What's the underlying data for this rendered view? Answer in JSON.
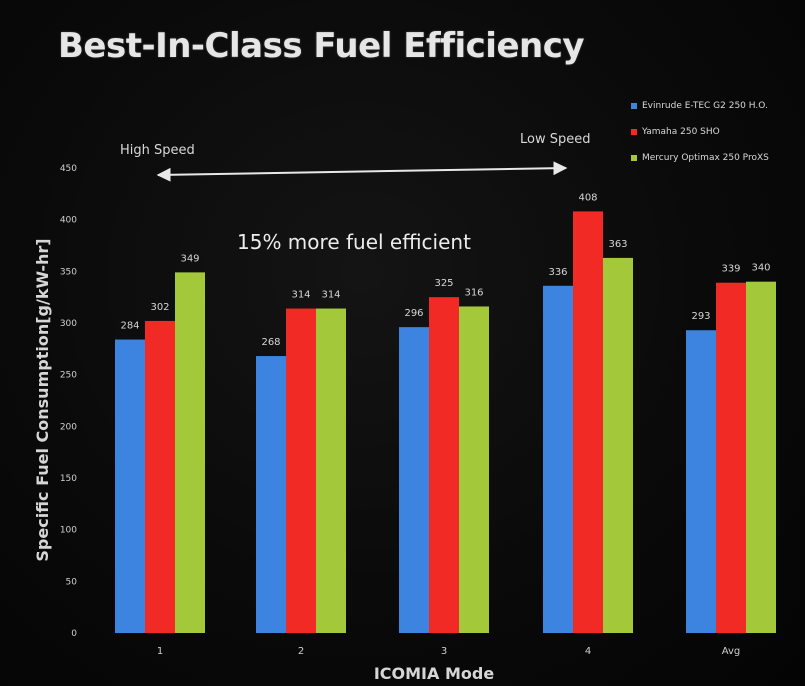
{
  "title": "Best-In-Class Fuel Efficiency",
  "chart_data": {
    "type": "bar",
    "categories": [
      "1",
      "2",
      "3",
      "4",
      "Avg"
    ],
    "series": [
      {
        "name": "Evinrude E-TEC G2 250 H.O.",
        "color": "#3d84e0",
        "values": [
          284,
          268,
          296,
          336,
          293
        ]
      },
      {
        "name": "Yamaha 250 SHO",
        "color": "#f22a25",
        "values": [
          302,
          314,
          325,
          408,
          339
        ]
      },
      {
        "name": "Mercury Optimax 250 ProXS",
        "color": "#a3c93a",
        "values": [
          349,
          314,
          316,
          363,
          340
        ]
      }
    ],
    "xlabel": "ICOMIA Mode",
    "ylabel": "Specific Fuel Consumption[g/kW-hr]",
    "ylim": [
      0,
      450
    ],
    "yticks": [
      0,
      50,
      100,
      150,
      200,
      250,
      300,
      350,
      400,
      450
    ],
    "grid": false,
    "legend_position": "top-right",
    "annotations": {
      "high_speed": "High Speed",
      "low_speed": "Low Speed",
      "efficiency_note": "15% more fuel efficient"
    }
  }
}
